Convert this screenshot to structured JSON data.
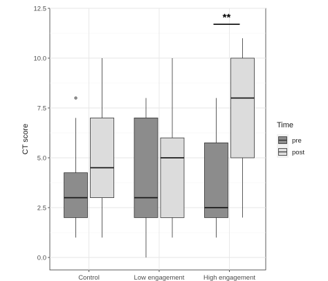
{
  "chart_data": {
    "type": "boxplot",
    "categories": [
      "Control",
      "Low engagement",
      "High engagement"
    ],
    "xlabel": "",
    "ylabel": "CT score",
    "ylim": [
      0,
      12.5
    ],
    "yticks": [
      0.0,
      2.5,
      5.0,
      7.5,
      10.0,
      12.5
    ],
    "ytick_labels": [
      "0.0",
      "2.5",
      "5.0",
      "7.5",
      "10.0",
      "12.5"
    ],
    "grid": true,
    "legend": {
      "title": "Time",
      "position": "right",
      "entries": [
        {
          "name": "pre",
          "color": "#8c8c8c"
        },
        {
          "name": "post",
          "color": "#dcdcdc"
        }
      ]
    },
    "series": [
      {
        "name": "pre",
        "color": "#8c8c8c",
        "boxes": [
          {
            "min": 1,
            "q1": 2,
            "median": 3,
            "q3": 4.25,
            "max": 7,
            "outliers": [
              8
            ]
          },
          {
            "min": 0,
            "q1": 2,
            "median": 3,
            "q3": 7,
            "max": 8,
            "outliers": []
          },
          {
            "min": 1,
            "q1": 2,
            "median": 2.5,
            "q3": 5.75,
            "max": 8,
            "outliers": []
          }
        ]
      },
      {
        "name": "post",
        "color": "#dcdcdc",
        "boxes": [
          {
            "min": 1,
            "q1": 3,
            "median": 4.5,
            "q3": 7,
            "max": 10,
            "outliers": []
          },
          {
            "min": 1,
            "q1": 2,
            "median": 5,
            "q3": 6,
            "max": 10,
            "outliers": []
          },
          {
            "min": 2,
            "q1": 5,
            "median": 8,
            "q3": 10,
            "max": 11,
            "outliers": []
          }
        ]
      }
    ],
    "annotations": [
      {
        "text": "**",
        "category": "High engagement",
        "y": 11.7
      }
    ]
  }
}
